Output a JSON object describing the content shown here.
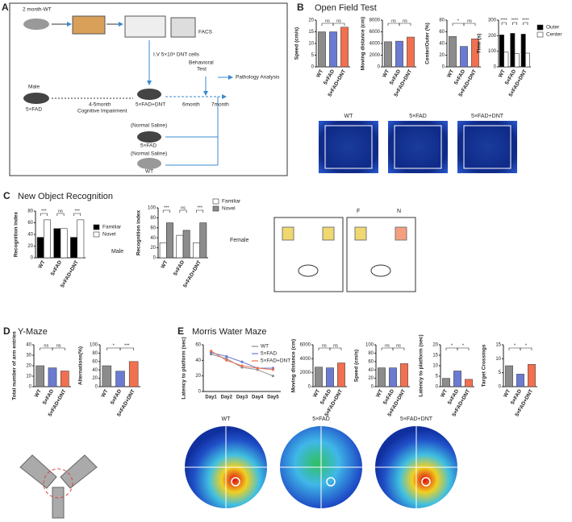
{
  "panel_labels": [
    "A",
    "B",
    "C",
    "D",
    "E"
  ],
  "panel_titles": [
    "Open Field Test",
    "New Object Recognition",
    "Y-Maze",
    "Morris Water Maze"
  ],
  "schematic_a": [
    "2 month-WT",
    "FACS",
    "I.V 5×10⁶ DNT cells",
    "Behavioral",
    "Test",
    "Male",
    "5×FAD",
    "4-5month",
    "Cognitive Impairment",
    "5×FAD+DNT",
    "6month",
    "7month",
    "Pathology Analysis",
    "(Normal Saline)",
    "5×FAD",
    "(Normal Saline)",
    "WT"
  ],
  "open_field_heatmap_labels": [
    "WT",
    "5×FAD",
    "5×FAD+DNT"
  ],
  "nor_labels": [
    "Male",
    "Female",
    "F",
    "N"
  ],
  "water_maze_heatmap_labels": [
    "WT",
    "5×FAD",
    "5×FAD+DNT"
  ],
  "chart_data": [
    {
      "type": "bar",
      "ylabel": "Speed (cm/s)",
      "categories": [
        "WT",
        "5×FAD",
        "5×FAD+DNT"
      ],
      "values": [
        15,
        15,
        17
      ],
      "colors": [
        "#8c8c8c",
        "#6b7bd1",
        "#f07050"
      ],
      "ylim": [
        0,
        20
      ],
      "yticks": [
        0,
        5,
        10,
        15,
        20
      ],
      "annotations": [
        "ns",
        "ns"
      ]
    },
    {
      "type": "bar",
      "ylabel": "Moving distance (cm)",
      "categories": [
        "WT",
        "5×FAD",
        "5×FAD+DNT"
      ],
      "values": [
        4300,
        4400,
        5100
      ],
      "colors": [
        "#8c8c8c",
        "#6b7bd1",
        "#f07050"
      ],
      "ylim": [
        0,
        8000
      ],
      "yticks": [
        0,
        2000,
        4000,
        6000,
        8000
      ],
      "annotations": [
        "ns",
        "ns"
      ]
    },
    {
      "type": "bar",
      "ylabel": "Center/Outer (%)",
      "categories": [
        "WT",
        "5×FAD",
        "5×FAD+DNT"
      ],
      "values": [
        52,
        35,
        48
      ],
      "colors": [
        "#8c8c8c",
        "#6b7bd1",
        "#f07050"
      ],
      "ylim": [
        0,
        80
      ],
      "yticks": [
        0,
        20,
        40,
        60,
        80
      ],
      "annotations": [
        "*",
        "ns"
      ]
    },
    {
      "type": "grouped",
      "ylabel": "Time (s)",
      "categories": [
        "WT",
        "5×FAD",
        "5×FAD+DNT"
      ],
      "series": [
        {
          "name": "Outer",
          "color": "#000000",
          "values": [
            205,
            215,
            210
          ]
        },
        {
          "name": "Center",
          "color": "#ffffff",
          "values": [
            95,
            85,
            88
          ]
        }
      ],
      "ylim": [
        0,
        300
      ],
      "yticks": [
        0,
        100,
        200,
        300
      ],
      "annotations": [
        "****",
        "****",
        "****"
      ],
      "legend": "right"
    },
    {
      "type": "grouped",
      "ylabel": "Recognition index",
      "categories": [
        "WT",
        "5×FAD",
        "5×FAD+DNT"
      ],
      "series": [
        {
          "name": "Familiar",
          "color": "#000000",
          "values": [
            35,
            50,
            35
          ]
        },
        {
          "name": "Novel",
          "color": "#ffffff",
          "values": [
            65,
            50,
            65
          ]
        }
      ],
      "ylim": [
        0,
        80
      ],
      "yticks": [
        0,
        20,
        40,
        60,
        80
      ],
      "annotations": [
        "***",
        "ns",
        "***"
      ],
      "legend": "right"
    },
    {
      "type": "grouped",
      "ylabel": "Recognition index",
      "categories": [
        "WT",
        "5×FAD",
        "5×FAD+DNT"
      ],
      "series": [
        {
          "name": "Familiar",
          "color": "#ffffff",
          "values": [
            30,
            45,
            30
          ]
        },
        {
          "name": "Novel",
          "color": "#8c8c8c",
          "values": [
            70,
            55,
            70
          ]
        }
      ],
      "ylim": [
        0,
        100
      ],
      "yticks": [
        0,
        20,
        40,
        60,
        80,
        100
      ],
      "annotations": [
        "***",
        "ns",
        "***"
      ],
      "legend": "right"
    },
    {
      "type": "bar",
      "ylabel": "Total number of arm entries",
      "categories": [
        "WT",
        "5×FAD",
        "5×FAD+DNT"
      ],
      "values": [
        20,
        18,
        15
      ],
      "colors": [
        "#8c8c8c",
        "#6b7bd1",
        "#f07050"
      ],
      "ylim": [
        0,
        40
      ],
      "yticks": [
        0,
        10,
        20,
        30,
        40
      ],
      "annotations": [
        "ns",
        "ns"
      ]
    },
    {
      "type": "bar",
      "ylabel": "Alternations(%)",
      "categories": [
        "WT",
        "5×FAD",
        "5×FAD+DNT"
      ],
      "values": [
        50,
        37,
        60
      ],
      "colors": [
        "#8c8c8c",
        "#6b7bd1",
        "#f07050"
      ],
      "ylim": [
        0,
        100
      ],
      "yticks": [
        0,
        20,
        40,
        60,
        80,
        100
      ],
      "annotations": [
        "*",
        "***"
      ]
    },
    {
      "type": "line",
      "ylabel": "Latency to platform (sec)",
      "categories": [
        "Day1",
        "Day2",
        "Day3",
        "Day4",
        "Day5"
      ],
      "series": [
        {
          "name": "WT",
          "color": "#8c8c8c",
          "values": [
            48,
            42,
            31,
            28,
            20
          ]
        },
        {
          "name": "5×FAD",
          "color": "#6b7bd1",
          "values": [
            50,
            45,
            38,
            30,
            30
          ]
        },
        {
          "name": "5×FAD+DNT",
          "color": "#f07050",
          "values": [
            52,
            40,
            33,
            30,
            28
          ]
        }
      ],
      "ylim": [
        0,
        60
      ],
      "yticks": [
        0,
        20,
        40,
        60
      ],
      "legend": "upper right"
    },
    {
      "type": "bar",
      "ylabel": "Moving distance (cm)",
      "categories": [
        "WT",
        "5×FAD",
        "5×FAD+DNT"
      ],
      "values": [
        2800,
        2700,
        3400
      ],
      "colors": [
        "#8c8c8c",
        "#6b7bd1",
        "#f07050"
      ],
      "ylim": [
        0,
        6000
      ],
      "yticks": [
        0,
        2000,
        4000,
        6000
      ],
      "annotations": [
        "ns",
        "ns"
      ]
    },
    {
      "type": "bar",
      "ylabel": "Speed (cm/s)",
      "categories": [
        "WT",
        "5×FAD",
        "5×FAD+DNT"
      ],
      "values": [
        45,
        45,
        55
      ],
      "colors": [
        "#8c8c8c",
        "#6b7bd1",
        "#f07050"
      ],
      "ylim": [
        0,
        100
      ],
      "yticks": [
        0,
        20,
        40,
        60,
        80,
        100
      ],
      "annotations": [
        "ns",
        "ns"
      ]
    },
    {
      "type": "bar",
      "ylabel": "Latency to platform (sec)",
      "categories": [
        "WT",
        "5×FAD",
        "5×FAD+DNT"
      ],
      "values": [
        4,
        7.5,
        3.5
      ],
      "colors": [
        "#8c8c8c",
        "#6b7bd1",
        "#f07050"
      ],
      "ylim": [
        0,
        20
      ],
      "yticks": [
        0,
        5,
        10,
        15,
        20
      ],
      "annotations": [
        "*",
        "*"
      ]
    },
    {
      "type": "bar",
      "ylabel": "Target Crossings",
      "categories": [
        "WT",
        "5×FAD",
        "5×FAD+DNT"
      ],
      "values": [
        7.5,
        4.5,
        8
      ],
      "colors": [
        "#8c8c8c",
        "#6b7bd1",
        "#f07050"
      ],
      "ylim": [
        0,
        15
      ],
      "yticks": [
        0,
        5,
        10,
        15
      ],
      "annotations": [
        "*",
        "*"
      ]
    }
  ]
}
